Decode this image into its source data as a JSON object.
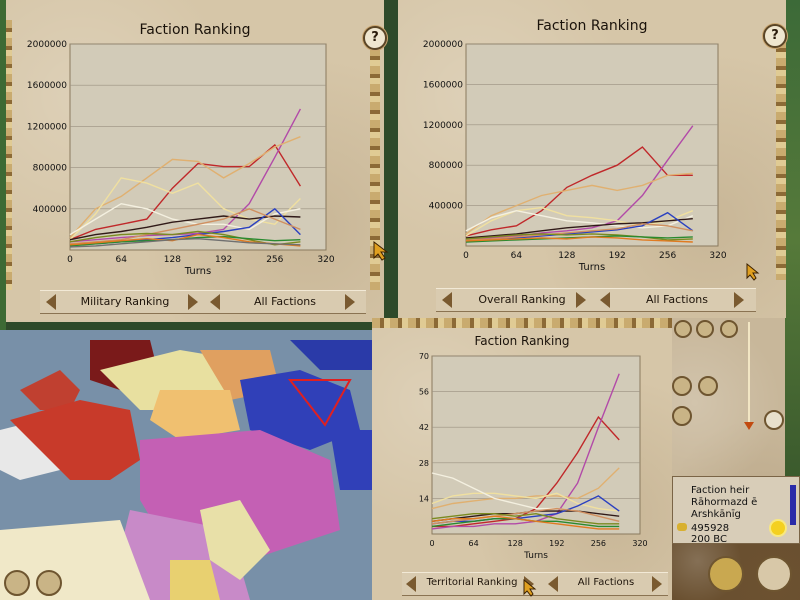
{
  "panels": [
    {
      "title": "Faction Ranking",
      "ranking_label": "Military Ranking",
      "factions_label": "All Factions",
      "xlabel": "Turns",
      "xticks": [
        "0",
        "64",
        "128",
        "192",
        "256",
        "320"
      ],
      "yticks": [
        "2000000",
        "1600000",
        "1200000",
        "800000",
        "400000"
      ],
      "help": "?"
    },
    {
      "title": "Faction Ranking",
      "ranking_label": "Overall Ranking",
      "factions_label": "All Factions",
      "xlabel": "Turns",
      "xticks": [
        "0",
        "64",
        "128",
        "192",
        "256",
        "320"
      ],
      "yticks": [
        "2000000",
        "1600000",
        "1200000",
        "800000",
        "400000"
      ],
      "help": "?"
    },
    {
      "title": "Faction Ranking",
      "ranking_label": "Territorial Ranking",
      "factions_label": "All Factions",
      "xlabel": "Turns",
      "xticks": [
        "0",
        "64",
        "128",
        "192",
        "256",
        "320"
      ],
      "yticks": [
        "70",
        "56",
        "42",
        "28",
        "14"
      ]
    }
  ],
  "faction_info": {
    "heir_label": "Faction heir",
    "heir_name_1": "Rāhormazd ē",
    "heir_name_2": "Arshkānīg",
    "money": "495928",
    "year": "200 BC"
  },
  "chart_data": [
    {
      "type": "line",
      "title": "Faction Ranking",
      "xlabel": "Turns",
      "ylabel": "",
      "xlim": [
        0,
        320
      ],
      "ylim": [
        0,
        2000000
      ],
      "x": [
        0,
        32,
        64,
        96,
        128,
        160,
        192,
        224,
        256,
        288
      ],
      "series": [
        {
          "color": "#c0282a",
          "values": [
            100000,
            200000,
            250000,
            300000,
            600000,
            840000,
            810000,
            810000,
            1020000,
            620000
          ]
        },
        {
          "color": "#b24aa8",
          "values": [
            80000,
            100000,
            120000,
            140000,
            150000,
            160000,
            200000,
            450000,
            900000,
            1370000
          ]
        },
        {
          "color": "#e0b070",
          "values": [
            120000,
            400000,
            520000,
            700000,
            880000,
            860000,
            700000,
            840000,
            1000000,
            1100000
          ]
        },
        {
          "color": "#f0e0a0",
          "values": [
            100000,
            350000,
            700000,
            650000,
            550000,
            650000,
            400000,
            300000,
            250000,
            500000
          ]
        },
        {
          "color": "#f4f0e0",
          "values": [
            150000,
            300000,
            450000,
            400000,
            300000,
            250000,
            250000,
            200000,
            350000,
            400000
          ]
        },
        {
          "color": "#301a18",
          "values": [
            100000,
            150000,
            180000,
            220000,
            270000,
            300000,
            330000,
            300000,
            330000,
            320000
          ]
        },
        {
          "color": "#2a40c0",
          "values": [
            50000,
            60000,
            80000,
            100000,
            120000,
            150000,
            180000,
            220000,
            400000,
            150000
          ]
        },
        {
          "color": "#d09060",
          "values": [
            60000,
            80000,
            100000,
            150000,
            200000,
            250000,
            300000,
            400000,
            300000,
            200000
          ]
        },
        {
          "color": "#7a8a20",
          "values": [
            80000,
            120000,
            150000,
            160000,
            150000,
            180000,
            150000,
            100000,
            50000,
            80000
          ]
        },
        {
          "color": "#2a8a30",
          "values": [
            40000,
            60000,
            80000,
            90000,
            100000,
            120000,
            130000,
            110000,
            90000,
            100000
          ]
        },
        {
          "color": "#e07a20",
          "values": [
            50000,
            70000,
            90000,
            110000,
            90000,
            150000,
            120000,
            80000,
            60000,
            40000
          ]
        },
        {
          "color": "#707070",
          "values": [
            30000,
            40000,
            60000,
            80000,
            100000,
            110000,
            90000,
            70000,
            60000,
            50000
          ]
        }
      ]
    },
    {
      "type": "line",
      "title": "Faction Ranking",
      "xlabel": "Turns",
      "ylabel": "",
      "xlim": [
        0,
        320
      ],
      "ylim": [
        0,
        2000000
      ],
      "x": [
        0,
        32,
        64,
        96,
        128,
        160,
        192,
        224,
        256,
        288
      ],
      "series": [
        {
          "color": "#c0282a",
          "values": [
            100000,
            160000,
            200000,
            350000,
            580000,
            700000,
            800000,
            980000,
            700000,
            700000
          ]
        },
        {
          "color": "#b24aa8",
          "values": [
            60000,
            80000,
            100000,
            130000,
            150000,
            180000,
            250000,
            500000,
            850000,
            1190000
          ]
        },
        {
          "color": "#e0b070",
          "values": [
            120000,
            300000,
            400000,
            500000,
            550000,
            600000,
            550000,
            600000,
            700000,
            720000
          ]
        },
        {
          "color": "#f0e0a0",
          "values": [
            100000,
            250000,
            350000,
            380000,
            300000,
            280000,
            250000,
            200000,
            250000,
            350000
          ]
        },
        {
          "color": "#f4f0e0",
          "values": [
            150000,
            280000,
            350000,
            300000,
            250000,
            230000,
            200000,
            180000,
            200000,
            300000
          ]
        },
        {
          "color": "#301a18",
          "values": [
            80000,
            100000,
            120000,
            150000,
            180000,
            200000,
            220000,
            230000,
            250000,
            270000
          ]
        },
        {
          "color": "#2a40c0",
          "values": [
            50000,
            60000,
            80000,
            100000,
            120000,
            140000,
            160000,
            200000,
            330000,
            150000
          ]
        },
        {
          "color": "#d09060",
          "values": [
            60000,
            70000,
            90000,
            110000,
            130000,
            150000,
            170000,
            220000,
            200000,
            150000
          ]
        },
        {
          "color": "#7a8a20",
          "values": [
            70000,
            90000,
            110000,
            120000,
            110000,
            120000,
            110000,
            90000,
            60000,
            70000
          ]
        },
        {
          "color": "#2a8a30",
          "values": [
            40000,
            50000,
            60000,
            70000,
            80000,
            90000,
            100000,
            90000,
            80000,
            90000
          ]
        },
        {
          "color": "#e07a20",
          "values": [
            50000,
            60000,
            70000,
            80000,
            70000,
            90000,
            80000,
            60000,
            50000,
            40000
          ]
        }
      ]
    },
    {
      "type": "line",
      "title": "Faction Ranking",
      "xlabel": "Turns",
      "ylabel": "",
      "xlim": [
        0,
        320
      ],
      "ylim": [
        0,
        70
      ],
      "x": [
        0,
        32,
        64,
        96,
        128,
        160,
        192,
        224,
        256,
        288
      ],
      "series": [
        {
          "color": "#c0282a",
          "values": [
            3,
            3,
            4,
            5,
            6,
            10,
            20,
            32,
            46,
            37
          ]
        },
        {
          "color": "#b24aa8",
          "values": [
            2,
            3,
            3,
            4,
            4,
            5,
            8,
            20,
            42,
            63
          ]
        },
        {
          "color": "#e0b070",
          "values": [
            10,
            12,
            13,
            14,
            14,
            15,
            15,
            14,
            18,
            26
          ]
        },
        {
          "color": "#f0e0a0",
          "values": [
            12,
            15,
            16,
            16,
            15,
            14,
            16,
            12,
            10,
            9
          ]
        },
        {
          "color": "#f4f0e0",
          "values": [
            24,
            22,
            18,
            14,
            12,
            10,
            10,
            9,
            8,
            7
          ]
        },
        {
          "color": "#301a18",
          "values": [
            5,
            6,
            7,
            8,
            8,
            9,
            9,
            9,
            8,
            7
          ]
        },
        {
          "color": "#2a40c0",
          "values": [
            4,
            5,
            5,
            6,
            6,
            7,
            8,
            11,
            15,
            9
          ]
        },
        {
          "color": "#d09060",
          "values": [
            4,
            5,
            6,
            7,
            8,
            9,
            10,
            9,
            7,
            5
          ]
        },
        {
          "color": "#7a8a20",
          "values": [
            6,
            7,
            8,
            8,
            7,
            8,
            6,
            5,
            4,
            4
          ]
        },
        {
          "color": "#2a8a30",
          "values": [
            3,
            4,
            5,
            6,
            6,
            5,
            5,
            4,
            3,
            3
          ]
        },
        {
          "color": "#e07a20",
          "values": [
            5,
            6,
            6,
            7,
            6,
            5,
            4,
            3,
            2,
            2
          ]
        }
      ]
    }
  ]
}
